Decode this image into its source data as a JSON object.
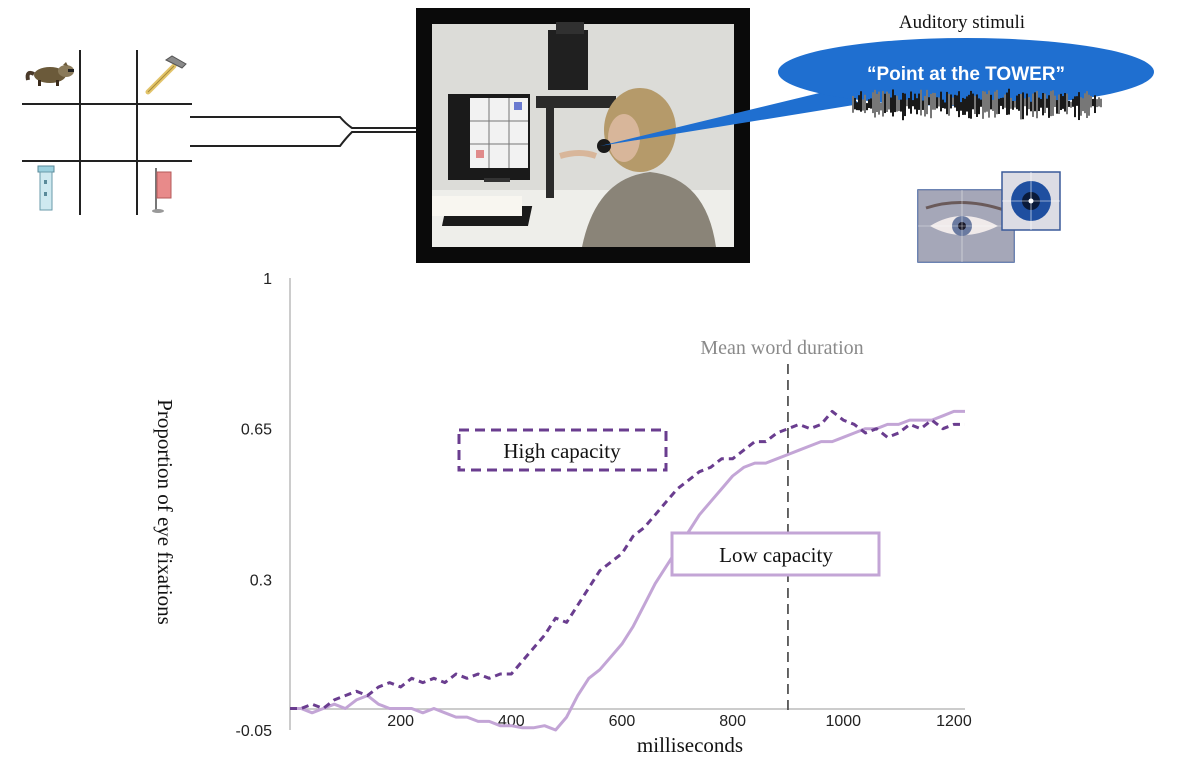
{
  "header": {
    "auditory_title": "Auditory stimuli",
    "bubble_text": "“Point at the TOWER”"
  },
  "grid": {
    "icons": [
      "raccoon-icon",
      "hammer-icon",
      "tower-icon",
      "flag-icon"
    ]
  },
  "colors": {
    "high": "#6a3d8f",
    "low": "#c3a5d6",
    "bubble": "#1f6fd0",
    "dashline": "#555555",
    "axis": "#bbbbbb"
  },
  "chart_data": {
    "type": "line",
    "xlabel": "milliseconds",
    "ylabel": "Proportion of eye fixations",
    "xlim": [
      0,
      1220
    ],
    "ylim": [
      -0.05,
      1
    ],
    "xticks": [
      200,
      400,
      600,
      800,
      1000,
      1200
    ],
    "yticks": [
      -0.05,
      0.3,
      0.65,
      1
    ],
    "grid": false,
    "annotations": {
      "mean_word_duration": {
        "x": 900,
        "label": "Mean word duration"
      }
    },
    "series": [
      {
        "name": "High capacity",
        "style": "dashed",
        "color": "#6a3d8f",
        "x": [
          0,
          20,
          40,
          60,
          80,
          100,
          120,
          140,
          160,
          180,
          200,
          220,
          240,
          260,
          280,
          300,
          320,
          340,
          360,
          380,
          400,
          420,
          440,
          460,
          480,
          500,
          520,
          540,
          560,
          580,
          600,
          620,
          640,
          660,
          680,
          700,
          720,
          740,
          760,
          780,
          800,
          820,
          840,
          860,
          880,
          900,
          920,
          940,
          960,
          980,
          1000,
          1020,
          1040,
          1060,
          1080,
          1100,
          1120,
          1140,
          1160,
          1180,
          1200,
          1220
        ],
        "values": [
          0.0,
          0.0,
          0.01,
          0.0,
          0.02,
          0.03,
          0.04,
          0.03,
          0.05,
          0.06,
          0.05,
          0.07,
          0.06,
          0.07,
          0.06,
          0.08,
          0.07,
          0.08,
          0.07,
          0.08,
          0.08,
          0.11,
          0.14,
          0.17,
          0.21,
          0.2,
          0.24,
          0.28,
          0.32,
          0.34,
          0.36,
          0.4,
          0.42,
          0.45,
          0.48,
          0.51,
          0.53,
          0.55,
          0.56,
          0.58,
          0.58,
          0.6,
          0.62,
          0.62,
          0.64,
          0.65,
          0.66,
          0.65,
          0.66,
          0.69,
          0.67,
          0.66,
          0.64,
          0.65,
          0.63,
          0.64,
          0.66,
          0.65,
          0.67,
          0.65,
          0.66,
          0.66
        ]
      },
      {
        "name": "Low capacity",
        "style": "solid",
        "color": "#c3a5d6",
        "x": [
          0,
          20,
          40,
          60,
          80,
          100,
          120,
          140,
          160,
          180,
          200,
          220,
          240,
          260,
          280,
          300,
          320,
          340,
          360,
          380,
          400,
          420,
          440,
          460,
          480,
          500,
          520,
          540,
          560,
          580,
          600,
          620,
          640,
          660,
          680,
          700,
          720,
          740,
          760,
          780,
          800,
          820,
          840,
          860,
          880,
          900,
          920,
          940,
          960,
          980,
          1000,
          1020,
          1040,
          1060,
          1080,
          1100,
          1120,
          1140,
          1160,
          1180,
          1200,
          1220
        ],
        "values": [
          0.0,
          0.0,
          -0.01,
          0.0,
          0.01,
          0.0,
          0.02,
          0.03,
          0.01,
          0.0,
          0.0,
          0.0,
          -0.01,
          0.0,
          -0.01,
          -0.02,
          -0.02,
          -0.03,
          -0.03,
          -0.04,
          -0.04,
          -0.045,
          -0.045,
          -0.04,
          -0.05,
          -0.02,
          0.03,
          0.07,
          0.09,
          0.12,
          0.15,
          0.19,
          0.24,
          0.29,
          0.33,
          0.37,
          0.41,
          0.45,
          0.48,
          0.51,
          0.54,
          0.56,
          0.57,
          0.57,
          0.58,
          0.59,
          0.6,
          0.61,
          0.62,
          0.62,
          0.63,
          0.64,
          0.65,
          0.65,
          0.66,
          0.66,
          0.67,
          0.67,
          0.67,
          0.68,
          0.69,
          0.69
        ]
      }
    ]
  }
}
